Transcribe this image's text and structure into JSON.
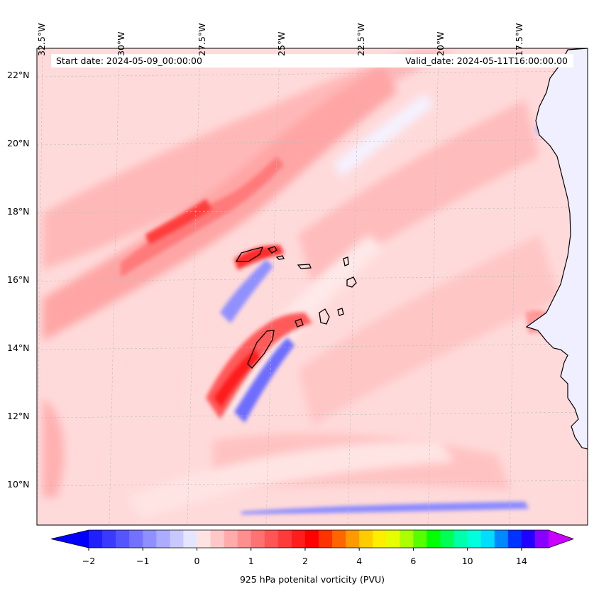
{
  "map": {
    "info": {
      "start_date": "Start date: 2024-05-09_00:00:00",
      "valid_date": "Valid_date: 2024-05-11T16:00:00.00"
    },
    "longitude_labels": [
      "32.5°W",
      "30°W",
      "27.5°W",
      "25°W",
      "22.5°W",
      "20°W",
      "17.5°W"
    ],
    "latitude_labels": [
      "22°N",
      "20°N",
      "18°N",
      "16°N",
      "14°N",
      "12°N",
      "10°N"
    ],
    "features": {
      "cape_verde_islands": "island-outline",
      "west_africa_coast": "coastline"
    },
    "colorbar": {
      "label": "925 hPa potenital vorticity (PVU)",
      "tick_labels": [
        "−2",
        "−1",
        "0",
        "1",
        "2",
        "4",
        "6",
        "10",
        "14"
      ],
      "colors": [
        "#2020ff",
        "#3a3aff",
        "#5555ff",
        "#7272ff",
        "#8f8fff",
        "#ababff",
        "#c8c8ff",
        "#e5e5ff",
        "#ffe3e3",
        "#ffc8c8",
        "#ffabab",
        "#ff8f8f",
        "#ff7272",
        "#ff5555",
        "#ff3a3a",
        "#ff1d1d",
        "#ff0000",
        "#ff3300",
        "#ff6600",
        "#ff9900",
        "#ffcc00",
        "#ffee00",
        "#e5ff00",
        "#aaff00",
        "#55ff00",
        "#00ff00",
        "#00ff55",
        "#00ffaa",
        "#00ffdd",
        "#00ddff",
        "#0088ff",
        "#0033ff",
        "#2200ff",
        "#8800ff"
      ],
      "under_color": "#0000ff",
      "over_color": "#cc00ff"
    }
  }
}
